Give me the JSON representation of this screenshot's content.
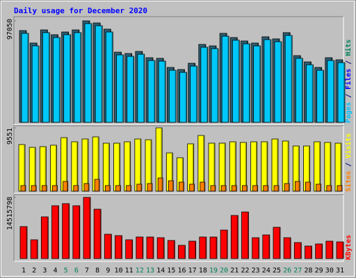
{
  "title": "Daily usage for December 2020",
  "legend_separator": " / ",
  "chart_data": [
    {
      "type": "bar",
      "ylim": [
        0,
        97050
      ],
      "legend": [
        {
          "name": "Pages",
          "color": "#00c0ff"
        },
        {
          "name": "Files",
          "color": "#0000ff"
        },
        {
          "name": "Hits",
          "color": "#00805c"
        }
      ],
      "series": [
        {
          "legend": 2,
          "color": "#2e5f73",
          "values": [
            87750,
            75800,
            88400,
            83800,
            86400,
            88400,
            97050,
            95060,
            89100,
            67100,
            65800,
            67800,
            61800,
            61200,
            52500,
            50500,
            56500,
            74500,
            73100,
            85100,
            81100,
            77800,
            75800,
            81800,
            79800,
            85800,
            63800,
            57800,
            52500,
            61800,
            59800
          ]
        },
        {
          "legend": 0,
          "color": "#00c8f8",
          "values": [
            85100,
            73100,
            85800,
            81100,
            83800,
            85800,
            94400,
            92400,
            86400,
            64500,
            63100,
            65100,
            59100,
            58500,
            49800,
            47800,
            53800,
            71800,
            70500,
            82400,
            78500,
            75100,
            73100,
            79100,
            77100,
            83100,
            61200,
            55100,
            49800,
            59100,
            57100
          ]
        }
      ]
    },
    {
      "type": "bar",
      "ylim": [
        0,
        9551
      ],
      "legend": [
        {
          "name": "Sites",
          "color": "#ff8000"
        },
        {
          "name": "Visits",
          "color": "#ffff00"
        }
      ],
      "series": [
        {
          "legend": 1,
          "color": "#ffff00",
          "values": [
            7030,
            6610,
            6720,
            6930,
            8080,
            7450,
            7870,
            8190,
            7240,
            7240,
            7450,
            7870,
            7760,
            9551,
            5770,
            5040,
            7140,
            8400,
            7240,
            7240,
            7450,
            7350,
            7450,
            7450,
            7870,
            7560,
            6820,
            6820,
            7450,
            7350,
            7240
          ]
        },
        {
          "legend": 0,
          "color": "#ff8000",
          "values": [
            840,
            840,
            840,
            840,
            1470,
            840,
            1150,
            1780,
            840,
            840,
            840,
            1050,
            1150,
            1990,
            1570,
            1360,
            1050,
            1360,
            840,
            840,
            840,
            840,
            840,
            840,
            840,
            1150,
            1470,
            1360,
            1050,
            840,
            840
          ]
        }
      ]
    },
    {
      "type": "bar",
      "ylim": [
        0,
        14515798
      ],
      "legend": [
        {
          "name": "KBytes",
          "color": "#ff0000"
        }
      ],
      "series": [
        {
          "legend": 0,
          "color": "#ff0000",
          "values": [
            7588000,
            4454000,
            9897000,
            12536000,
            13031000,
            12536000,
            14515798,
            11712000,
            5773000,
            5443000,
            4454000,
            5114000,
            5114000,
            4949000,
            4289000,
            3134000,
            4124000,
            5114000,
            5114000,
            6763000,
            10227000,
            11052000,
            4949000,
            5608000,
            7423000,
            4949000,
            3794000,
            2969000,
            3464000,
            4124000,
            3959000
          ]
        }
      ],
      "categories": [
        "1",
        "2",
        "3",
        "4",
        "5",
        "6",
        "7",
        "8",
        "9",
        "10",
        "11",
        "12",
        "13",
        "14",
        "15",
        "16",
        "17",
        "18",
        "19",
        "20",
        "21",
        "22",
        "23",
        "24",
        "25",
        "26",
        "27",
        "28",
        "29",
        "30",
        "31"
      ],
      "category_color": "#000000",
      "weekend_color": "#00805c",
      "weekend_indices": [
        4,
        5,
        11,
        12,
        18,
        19,
        25,
        26
      ]
    }
  ]
}
